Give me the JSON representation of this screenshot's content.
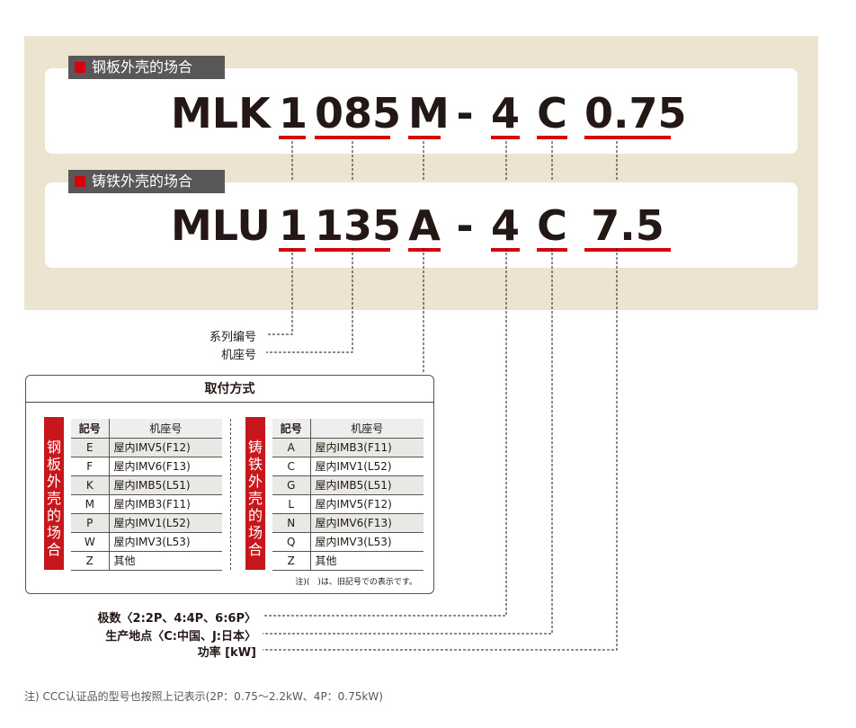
{
  "steel": {
    "label": "钢板外壳的场合",
    "code": [
      "MLK",
      "1",
      "085",
      "M",
      "-",
      "4",
      "C",
      "0.75"
    ]
  },
  "cast": {
    "label": "铸铁外壳的场合",
    "code": [
      "MLU",
      "1",
      "135",
      "A",
      "-",
      "4",
      "C",
      "7.5"
    ]
  },
  "labels": {
    "series": "系列编号",
    "frame": "机座号",
    "poles": "极数〈2:2P、4:4P、6:6P〉",
    "origin": "生产地点〈C:中国、J:日本〉",
    "power": "功率 [kW]"
  },
  "mounting": {
    "title": "取付方式",
    "col_code": "記号",
    "col_frame": "机座号",
    "steel_side": "钢板外壳的场合",
    "steel_rows": [
      [
        "E",
        "屋内IMV5(F12)"
      ],
      [
        "F",
        "屋内IMV6(F13)"
      ],
      [
        "K",
        "屋内IMB5(L51)"
      ],
      [
        "M",
        "屋内IMB3(F11)"
      ],
      [
        "P",
        "屋内IMV1(L52)"
      ],
      [
        "W",
        "屋内IMV3(L53)"
      ],
      [
        "Z",
        "其他"
      ]
    ],
    "cast_side": "铸铁外壳的场合",
    "cast_rows": [
      [
        "A",
        "屋内IMB3(F11)"
      ],
      [
        "C",
        "屋内IMV1(L52)"
      ],
      [
        "G",
        "屋内IMB5(L51)"
      ],
      [
        "L",
        "屋内IMV5(F12)"
      ],
      [
        "N",
        "屋内IMV6(F13)"
      ],
      [
        "Q",
        "屋内IMV3(L53)"
      ],
      [
        "Z",
        "其他"
      ]
    ],
    "note": "注)(　)は、旧記号での表示です。"
  },
  "footnote": "注) CCC认证品的型号也按照上记表示(2P：0.75～2.2kW、4P：0.75kW)",
  "colors": {
    "accent": "#d7000f",
    "panel": "#ece4d0",
    "tab": "#595757"
  }
}
